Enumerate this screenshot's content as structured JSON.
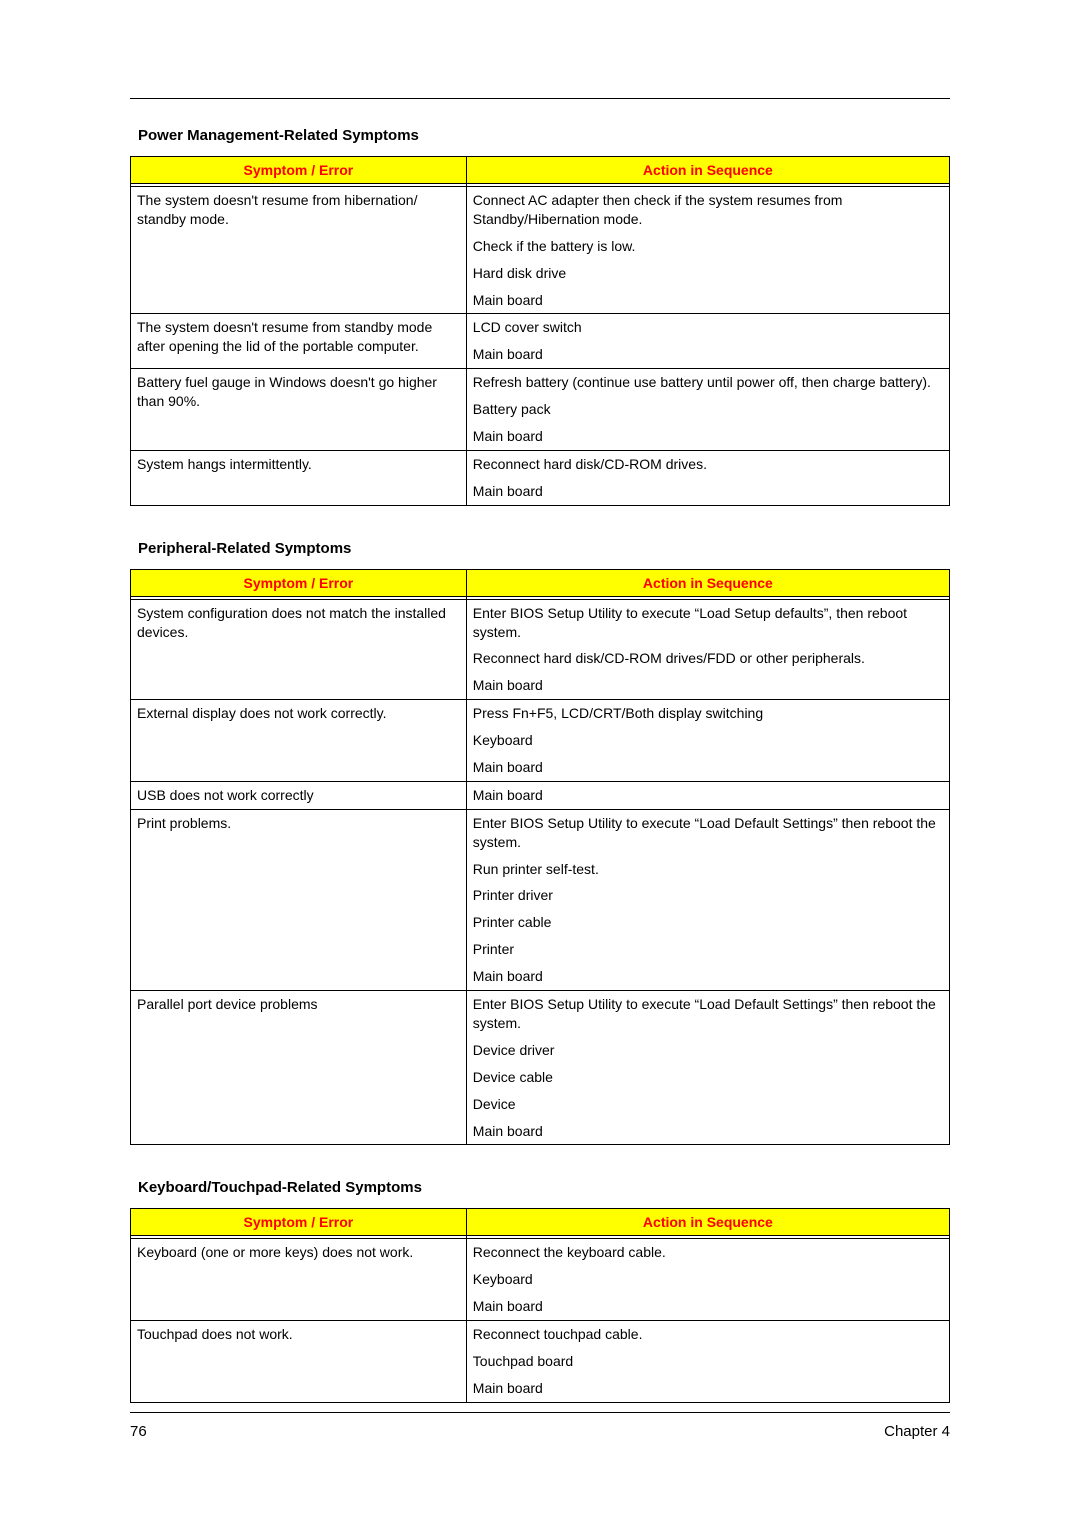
{
  "header_colors": {
    "bg": "#ffff00",
    "fg": "#ff0000"
  },
  "column_headers": {
    "symptom": "Symptom / Error",
    "action": "Action in Sequence"
  },
  "footer": {
    "page": "76",
    "chapter": "Chapter 4"
  },
  "sections": [
    {
      "title": "Power Management-Related Symptoms",
      "rows": [
        {
          "symptom": "The system doesn't resume from hibernation/ standby mode.",
          "actions": [
            "Connect AC adapter then check if the system resumes from Standby/Hibernation mode.",
            "Check if the battery is low.",
            "Hard disk drive",
            "Main board"
          ]
        },
        {
          "symptom": "The system doesn't resume from standby mode after opening the lid of the portable computer.",
          "actions": [
            "LCD cover switch",
            "Main board"
          ]
        },
        {
          "symptom": "Battery fuel gauge in Windows doesn't go higher than 90%.",
          "actions": [
            "Refresh battery (continue use battery until power off, then charge battery).",
            "Battery pack",
            "Main board"
          ]
        },
        {
          "symptom": "System hangs intermittently.",
          "actions": [
            "Reconnect hard disk/CD-ROM drives.",
            "Main board"
          ]
        }
      ]
    },
    {
      "title": "Peripheral-Related Symptoms",
      "rows": [
        {
          "symptom": "System configuration does not match the installed devices.",
          "actions": [
            "Enter BIOS Setup Utility to execute “Load Setup defaults”, then reboot system.",
            "Reconnect hard disk/CD-ROM drives/FDD or other peripherals.",
            "Main board"
          ]
        },
        {
          "symptom": "External display does not work correctly.",
          "actions": [
            "Press Fn+F5, LCD/CRT/Both display switching",
            "Keyboard",
            "Main board"
          ]
        },
        {
          "symptom": "USB does not work correctly",
          "actions": [
            "Main board"
          ]
        },
        {
          "symptom": "Print problems.",
          "actions": [
            "Enter BIOS Setup Utility to execute “Load Default Settings” then reboot the system.",
            "Run printer self-test.",
            "Printer driver",
            "Printer cable",
            "Printer",
            "Main board"
          ]
        },
        {
          "symptom": "Parallel port device problems",
          "actions": [
            "Enter BIOS Setup Utility to execute “Load Default Settings” then reboot the system.",
            "Device driver",
            "Device cable",
            "Device",
            "Main board"
          ]
        }
      ]
    },
    {
      "title": "Keyboard/Touchpad-Related Symptoms",
      "rows": [
        {
          "symptom": "Keyboard (one or more keys) does not work.",
          "actions": [
            "Reconnect the keyboard cable.",
            "Keyboard",
            "Main board"
          ]
        },
        {
          "symptom": "Touchpad does not work.",
          "actions": [
            "Reconnect touchpad cable.",
            "Touchpad board",
            "Main board"
          ]
        }
      ]
    }
  ]
}
